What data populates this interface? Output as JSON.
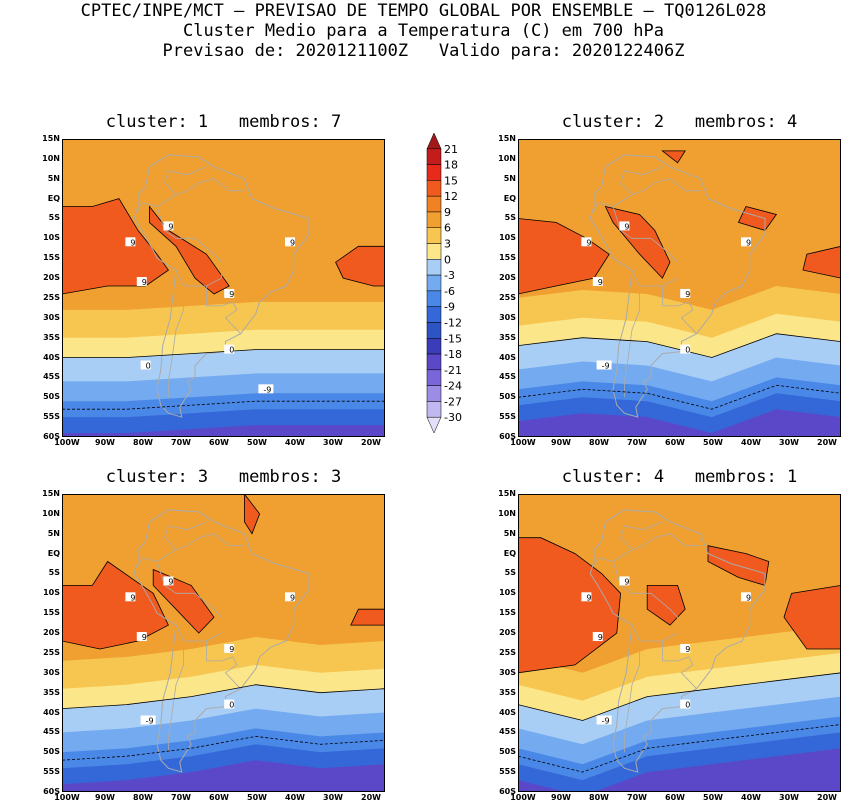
{
  "header": {
    "line1": "CPTEC/INPE/MCT – PREVISAO DE TEMPO GLOBAL POR ENSEMBLE – TQ0126L028",
    "line2": "Cluster Medio para a Temperatura (C) em 700 hPa",
    "line3": "Previsao de: 2020121100Z   Valido para: 2020122406Z"
  },
  "panels": [
    {
      "title": "cluster: 1   membros: 7",
      "labels": [
        "9",
        "9",
        "9",
        "9",
        "9",
        "0",
        "0",
        "-9"
      ]
    },
    {
      "title": "cluster: 2   membros: 4",
      "labels": [
        "9",
        "9",
        "9",
        "9",
        "9",
        "0",
        "-9"
      ]
    },
    {
      "title": "cluster: 3   membros: 3",
      "labels": [
        "9",
        "9",
        "9",
        "9",
        "9",
        "0",
        "-9"
      ]
    },
    {
      "title": "cluster: 4   membros: 1",
      "labels": [
        "9",
        "9",
        "9",
        "9",
        "9",
        "0",
        "-9"
      ]
    }
  ],
  "lat_labels": [
    "15N",
    "10N",
    "5N",
    "EQ",
    "5S",
    "10S",
    "15S",
    "20S",
    "25S",
    "30S",
    "35S",
    "40S",
    "45S",
    "50S",
    "55S",
    "60S"
  ],
  "lon_labels": [
    "100W",
    "90W",
    "80W",
    "70W",
    "60W",
    "50W",
    "40W",
    "30W",
    "20W"
  ],
  "colorbar": {
    "levels": [
      "21",
      "18",
      "15",
      "12",
      "9",
      "6",
      "3",
      "0",
      "-3",
      "-6",
      "-9",
      "-12",
      "-15",
      "-18",
      "-21",
      "-24",
      "-27",
      "-30"
    ],
    "colors": [
      "#a01818",
      "#c41c1c",
      "#e82a1a",
      "#f05a1e",
      "#f08224",
      "#f0a030",
      "#f6c650",
      "#fce68a",
      "#a8cef6",
      "#74aaf0",
      "#4a88e8",
      "#3468d8",
      "#2e54c4",
      "#3a3cb8",
      "#5a48c8",
      "#7a66d8",
      "#9c8ce6",
      "#c0b8f0",
      "#e2e0f8"
    ]
  },
  "colors": {
    "warm_core": "#f05a1e",
    "warm": "#f08224",
    "mild": "#f0a030",
    "light_warm": "#f6c650",
    "pale": "#fce68a",
    "cold1": "#a8cef6",
    "cold2": "#74aaf0",
    "cold3": "#4a88e8",
    "cold4": "#3468d8",
    "cold5": "#5a48c8"
  }
}
